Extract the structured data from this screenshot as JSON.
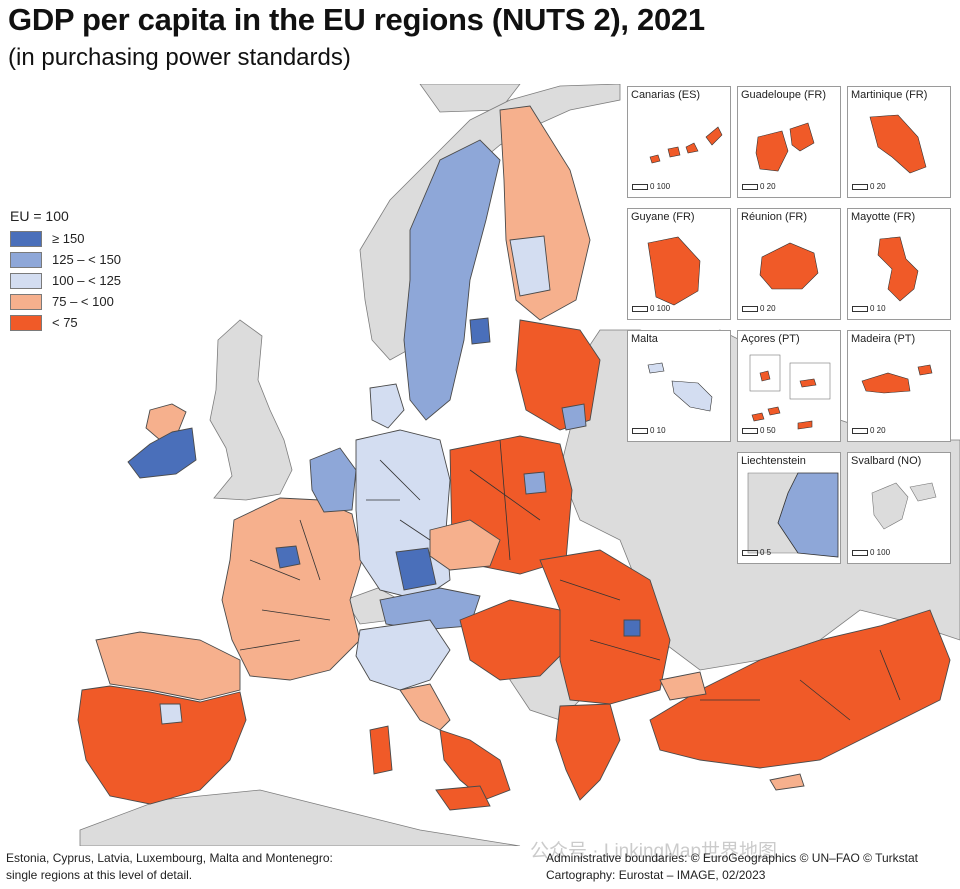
{
  "title": "GDP per capita in the EU regions (NUTS 2), 2021",
  "subtitle": "(in purchasing power standards)",
  "legend": {
    "title": "EU = 100",
    "items": [
      {
        "label": "≥ 150",
        "color": "#4a6fba"
      },
      {
        "label": "125 – < 150",
        "color": "#8ea7d8"
      },
      {
        "label": "100 – < 125",
        "color": "#d3ddf1"
      },
      {
        "label": "75 – < 100",
        "color": "#f6b08d"
      },
      {
        "label": "< 75",
        "color": "#f05a28"
      }
    ]
  },
  "colors": {
    "sea": "#ffffff",
    "non_eu_land": "#dcdcdc",
    "border": "#555555"
  },
  "insets": [
    {
      "name": "Canarias (ES)",
      "class": "< 75",
      "scale_label": "100"
    },
    {
      "name": "Guadeloupe (FR)",
      "class": "< 75",
      "scale_label": "20"
    },
    {
      "name": "Martinique (FR)",
      "class": "< 75",
      "scale_label": "20"
    },
    {
      "name": "Guyane (FR)",
      "class": "< 75",
      "scale_label": "100"
    },
    {
      "name": "Réunion (FR)",
      "class": "< 75",
      "scale_label": "20"
    },
    {
      "name": "Mayotte (FR)",
      "class": "< 75",
      "scale_label": "10"
    },
    {
      "name": "Malta",
      "class": "100 – < 125",
      "scale_label": "10"
    },
    {
      "name": "Açores (PT)",
      "class": "< 75",
      "scale_label": "50"
    },
    {
      "name": "Madeira (PT)",
      "class": "< 75",
      "scale_label": "20"
    },
    {
      "name": "Liechtenstein",
      "class": "125 – < 150",
      "scale_label": "5"
    },
    {
      "name": "Svalbard (NO)",
      "class": "none",
      "scale_label": "100"
    }
  ],
  "notes": {
    "left_line1": "Estonia, Cyprus, Latvia, Luxembourg, Malta and Montenegro:",
    "left_line2": "single regions at this level of detail.",
    "right_line1": "Administrative boundaries: © EuroGeographics © UN–FAO © Turkstat",
    "right_line2": "Cartography: Eurostat – IMAGE, 02/2023"
  },
  "watermark": "公众号 · LinkingMap世界地图"
}
